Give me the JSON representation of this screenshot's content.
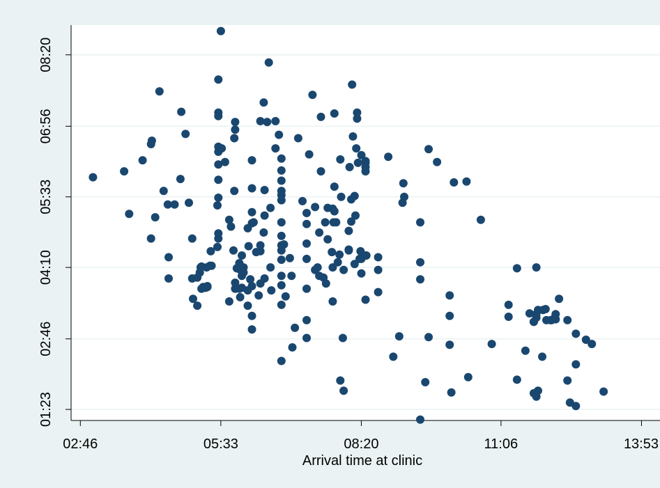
{
  "chart_data": {
    "type": "scatter",
    "title": "",
    "xlabel": "Arrival time at clinic",
    "ylabel": "",
    "xlim": [
      "02:35",
      "14:15"
    ],
    "ylim": [
      "01:10",
      "08:55"
    ],
    "x_ticks": [
      "02:46",
      "05:33",
      "08:20",
      "11:06",
      "13:53"
    ],
    "y_ticks": [
      "01:23",
      "02:46",
      "04:10",
      "05:33",
      "06:56",
      "08:20"
    ],
    "grid": true,
    "colors": {
      "background": "#eaf2f3",
      "plot_area": "#ffffff",
      "gridline": "#eaf2f3",
      "marker": "#1a476f"
    },
    "points": [
      [
        "03:01",
        "05:56"
      ],
      [
        "03:38",
        "06:03"
      ],
      [
        "03:44",
        "05:13"
      ],
      [
        "04:00",
        "06:16"
      ],
      [
        "04:10",
        "06:35"
      ],
      [
        "04:11",
        "06:39"
      ],
      [
        "04:10",
        "04:44"
      ],
      [
        "04:15",
        "05:09"
      ],
      [
        "04:20",
        "07:37"
      ],
      [
        "04:25",
        "05:40"
      ],
      [
        "04:30",
        "05:24"
      ],
      [
        "04:31",
        "04:22"
      ],
      [
        "04:31",
        "03:57"
      ],
      [
        "04:38",
        "05:24"
      ],
      [
        "04:45",
        "05:54"
      ],
      [
        "04:46",
        "07:13"
      ],
      [
        "04:51",
        "06:47"
      ],
      [
        "04:55",
        "05:26"
      ],
      [
        "04:59",
        "04:44"
      ],
      [
        "04:59",
        "03:57"
      ],
      [
        "05:00",
        "03:33"
      ],
      [
        "05:05",
        "03:25"
      ],
      [
        "05:05",
        "03:58"
      ],
      [
        "05:08",
        "04:04"
      ],
      [
        "05:09",
        "04:10"
      ],
      [
        "05:10",
        "04:11"
      ],
      [
        "05:10",
        "03:45"
      ],
      [
        "05:12",
        "03:46"
      ],
      [
        "05:15",
        "03:46"
      ],
      [
        "05:17",
        "03:48"
      ],
      [
        "05:12",
        "03:47"
      ],
      [
        "05:16",
        "04:10"
      ],
      [
        "05:17",
        "03:47"
      ],
      [
        "05:20",
        "04:12"
      ],
      [
        "05:22",
        "04:12"
      ],
      [
        "05:21",
        "04:29"
      ],
      [
        "05:29",
        "04:34"
      ],
      [
        "05:30",
        "04:44"
      ],
      [
        "05:30",
        "04:50"
      ],
      [
        "05:29",
        "05:23"
      ],
      [
        "05:30",
        "05:32"
      ],
      [
        "05:30",
        "05:53"
      ],
      [
        "05:30",
        "06:11"
      ],
      [
        "05:30",
        "06:26"
      ],
      [
        "05:30",
        "06:32"
      ],
      [
        "05:30",
        "07:08"
      ],
      [
        "05:30",
        "07:12"
      ],
      [
        "05:30",
        "07:51"
      ],
      [
        "05:33",
        "08:48"
      ],
      [
        "05:34",
        "06:30"
      ],
      [
        "05:38",
        "06:14"
      ],
      [
        "05:43",
        "05:06"
      ],
      [
        "05:45",
        "04:58"
      ],
      [
        "05:49",
        "05:40"
      ],
      [
        "05:49",
        "06:42"
      ],
      [
        "05:50",
        "06:52"
      ],
      [
        "05:50",
        "07:01"
      ],
      [
        "05:48",
        "04:30"
      ],
      [
        "05:50",
        "03:52"
      ],
      [
        "05:43",
        "03:30"
      ],
      [
        "05:50",
        "03:45"
      ],
      [
        "05:55",
        "04:08"
      ],
      [
        "05:52",
        "04:09"
      ],
      [
        "05:55",
        "04:15"
      ],
      [
        "05:58",
        "04:24"
      ],
      [
        "06:00",
        "04:10"
      ],
      [
        "06:00",
        "04:04"
      ],
      [
        "05:55",
        "03:45"
      ],
      [
        "05:56",
        "03:35"
      ],
      [
        "05:58",
        "03:46"
      ],
      [
        "05:58",
        "04:00"
      ],
      [
        "06:10",
        "03:48"
      ],
      [
        "06:05",
        "03:43"
      ],
      [
        "06:05",
        "03:25"
      ],
      [
        "06:10",
        "03:13"
      ],
      [
        "06:10",
        "02:57"
      ],
      [
        "06:08",
        "03:56"
      ],
      [
        "06:06",
        "04:35"
      ],
      [
        "06:10",
        "05:02"
      ],
      [
        "06:05",
        "04:56"
      ],
      [
        "06:12",
        "05:03"
      ],
      [
        "06:10",
        "05:15"
      ],
      [
        "06:10",
        "05:43"
      ],
      [
        "06:10",
        "06:16"
      ],
      [
        "06:15",
        "04:28"
      ],
      [
        "06:18",
        "03:37"
      ],
      [
        "06:20",
        "03:51"
      ],
      [
        "06:25",
        "03:57"
      ],
      [
        "06:20",
        "04:29"
      ],
      [
        "06:20",
        "04:36"
      ],
      [
        "06:24",
        "04:51"
      ],
      [
        "06:25",
        "05:11"
      ],
      [
        "06:25",
        "05:41"
      ],
      [
        "06:24",
        "07:24"
      ],
      [
        "06:20",
        "07:02"
      ],
      [
        "06:28",
        "07:01"
      ],
      [
        "06:30",
        "08:11"
      ],
      [
        "06:32",
        "05:20"
      ],
      [
        "06:33",
        "03:43"
      ],
      [
        "06:32",
        "04:10"
      ],
      [
        "06:38",
        "07:02"
      ],
      [
        "06:38",
        "06:30"
      ],
      [
        "06:42",
        "06:46"
      ],
      [
        "06:45",
        "06:18"
      ],
      [
        "06:45",
        "06:04"
      ],
      [
        "06:45",
        "05:52"
      ],
      [
        "06:45",
        "05:40"
      ],
      [
        "06:45",
        "05:35"
      ],
      [
        "06:45",
        "05:29"
      ],
      [
        "06:45",
        "05:03"
      ],
      [
        "06:45",
        "04:47"
      ],
      [
        "06:45",
        "04:36"
      ],
      [
        "06:45",
        "04:30"
      ],
      [
        "06:45",
        "04:19"
      ],
      [
        "06:45",
        "04:00"
      ],
      [
        "06:45",
        "03:49"
      ],
      [
        "06:48",
        "04:37"
      ],
      [
        "06:50",
        "03:36"
      ],
      [
        "06:45",
        "03:26"
      ],
      [
        "06:45",
        "02:20"
      ],
      [
        "06:55",
        "04:21"
      ],
      [
        "06:57",
        "04:00"
      ],
      [
        "06:58",
        "02:36"
      ],
      [
        "07:01",
        "02:59"
      ],
      [
        "07:05",
        "06:42"
      ],
      [
        "07:10",
        "05:28"
      ],
      [
        "07:15",
        "05:01"
      ],
      [
        "07:15",
        "04:38"
      ],
      [
        "07:15",
        "04:20"
      ],
      [
        "07:15",
        "03:45"
      ],
      [
        "07:15",
        "03:08"
      ],
      [
        "07:15",
        "02:47"
      ],
      [
        "07:15",
        "05:14"
      ],
      [
        "07:18",
        "06:23"
      ],
      [
        "07:22",
        "07:33"
      ],
      [
        "07:25",
        "05:21"
      ],
      [
        "07:25",
        "04:07"
      ],
      [
        "07:30",
        "04:51"
      ],
      [
        "07:28",
        "04:10"
      ],
      [
        "07:30",
        "04:00"
      ],
      [
        "07:32",
        "06:03"
      ],
      [
        "07:37",
        "05:03"
      ],
      [
        "07:35",
        "03:58"
      ],
      [
        "07:38",
        "03:51"
      ],
      [
        "07:32",
        "07:07"
      ],
      [
        "07:40",
        "05:20"
      ],
      [
        "07:40",
        "04:43"
      ],
      [
        "07:45",
        "04:28"
      ],
      [
        "07:46",
        "03:30"
      ],
      [
        "07:48",
        "07:11"
      ],
      [
        "07:46",
        "04:10"
      ],
      [
        "07:47",
        "05:03"
      ],
      [
        "07:46",
        "05:19"
      ],
      [
        "07:48",
        "05:16"
      ],
      [
        "07:50",
        "05:03"
      ],
      [
        "07:48",
        "05:45"
      ],
      [
        "07:52",
        "04:16"
      ],
      [
        "07:55",
        "06:17"
      ],
      [
        "07:56",
        "05:33"
      ],
      [
        "07:58",
        "02:47"
      ],
      [
        "07:59",
        "01:45"
      ],
      [
        "07:54",
        "04:25"
      ],
      [
        "07:59",
        "04:07"
      ],
      [
        "07:55",
        "01:57"
      ],
      [
        "08:05",
        "04:31"
      ],
      [
        "08:06",
        "06:08"
      ],
      [
        "08:09",
        "07:45"
      ],
      [
        "08:08",
        "05:30"
      ],
      [
        "08:08",
        "05:04"
      ],
      [
        "08:05",
        "04:53"
      ],
      [
        "08:05",
        "04:30"
      ],
      [
        "08:10",
        "06:44"
      ],
      [
        "08:14",
        "06:30"
      ],
      [
        "08:12",
        "05:34"
      ],
      [
        "08:13",
        "05:11"
      ],
      [
        "08:12",
        "04:14"
      ],
      [
        "08:15",
        "07:12"
      ],
      [
        "08:15",
        "07:05"
      ],
      [
        "08:16",
        "06:13"
      ],
      [
        "08:20",
        "06:22"
      ],
      [
        "08:25",
        "06:15"
      ],
      [
        "08:25",
        "06:13"
      ],
      [
        "08:25",
        "06:08"
      ],
      [
        "08:25",
        "06:03"
      ],
      [
        "08:19",
        "04:29"
      ],
      [
        "08:18",
        "04:20"
      ],
      [
        "08:26",
        "04:24"
      ],
      [
        "08:20",
        "04:20"
      ],
      [
        "08:20",
        "04:03"
      ],
      [
        "08:25",
        "04:24"
      ],
      [
        "08:25",
        "03:32"
      ],
      [
        "08:40",
        "04:22"
      ],
      [
        "08:40",
        "04:07"
      ],
      [
        "08:40",
        "03:41"
      ],
      [
        "08:58",
        "02:25"
      ],
      [
        "08:52",
        "06:20"
      ],
      [
        "09:10",
        "05:49"
      ],
      [
        "09:11",
        "05:33"
      ],
      [
        "09:09",
        "05:26"
      ],
      [
        "09:05",
        "02:49"
      ],
      [
        "09:30",
        "05:03"
      ],
      [
        "09:30",
        "04:16"
      ],
      [
        "09:30",
        "01:11"
      ],
      [
        "09:30",
        "03:56"
      ],
      [
        "09:36",
        "01:55"
      ],
      [
        "09:40",
        "02:48"
      ],
      [
        "09:40",
        "06:29"
      ],
      [
        "09:50",
        "06:14"
      ],
      [
        "10:05",
        "03:37"
      ],
      [
        "10:05",
        "03:13"
      ],
      [
        "10:05",
        "02:39"
      ],
      [
        "10:07",
        "01:43"
      ],
      [
        "10:10",
        "05:50"
      ],
      [
        "10:25",
        "05:51"
      ],
      [
        "10:27",
        "02:01"
      ],
      [
        "10:42",
        "05:06"
      ],
      [
        "10:55",
        "02:40"
      ],
      [
        "11:15",
        "03:26"
      ],
      [
        "11:15",
        "03:12"
      ],
      [
        "11:25",
        "04:09"
      ],
      [
        "11:25",
        "01:58"
      ],
      [
        "11:35",
        "02:32"
      ],
      [
        "11:40",
        "03:16"
      ],
      [
        "11:45",
        "03:06"
      ],
      [
        "11:45",
        "01:42"
      ],
      [
        "11:45",
        "03:06"
      ],
      [
        "11:48",
        "04:10"
      ],
      [
        "11:48",
        "03:11"
      ],
      [
        "11:48",
        "03:15"
      ],
      [
        "11:50",
        "03:20"
      ],
      [
        "11:48",
        "01:38"
      ],
      [
        "11:50",
        "01:45"
      ],
      [
        "11:55",
        "02:25"
      ],
      [
        "11:56",
        "03:20"
      ],
      [
        "11:59",
        "03:21"
      ],
      [
        "12:00",
        "03:08"
      ],
      [
        "12:06",
        "03:08"
      ],
      [
        "12:10",
        "03:11"
      ],
      [
        "12:11",
        "03:15"
      ],
      [
        "12:11",
        "03:09"
      ],
      [
        "12:05",
        "03:08"
      ],
      [
        "12:15",
        "03:33"
      ],
      [
        "12:25",
        "01:57"
      ],
      [
        "12:25",
        "03:08"
      ],
      [
        "12:28",
        "01:31"
      ],
      [
        "12:35",
        "02:52"
      ],
      [
        "12:35",
        "02:16"
      ],
      [
        "12:35",
        "01:27"
      ],
      [
        "12:47",
        "02:45"
      ],
      [
        "12:54",
        "02:40"
      ],
      [
        "13:08",
        "01:44"
      ]
    ]
  }
}
